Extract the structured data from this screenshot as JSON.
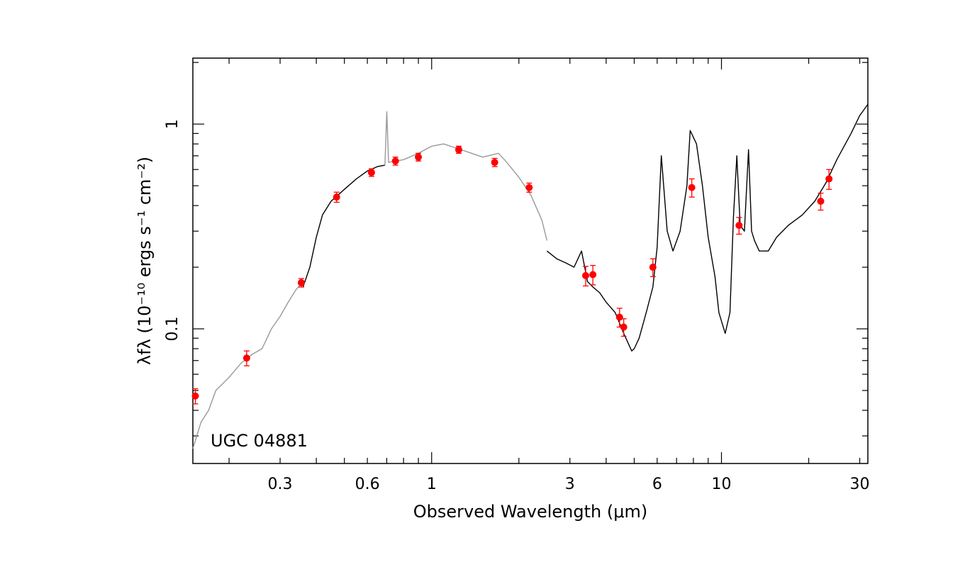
{
  "chart_data": {
    "type": "scatter",
    "title": "",
    "annotation": "UGC 04881",
    "xlabel": "Observed Wavelength (μm)",
    "ylabel": "λfλ (10⁻¹⁰ ergs s⁻¹ cm⁻²)",
    "x_scale": "log",
    "y_scale": "log",
    "xlim": [
      0.15,
      32
    ],
    "ylim": [
      0.022,
      2.1
    ],
    "x_ticks": [
      {
        "value": 0.3,
        "label": "0.3"
      },
      {
        "value": 0.6,
        "label": "0.6"
      },
      {
        "value": 1,
        "label": "1"
      },
      {
        "value": 3,
        "label": "3"
      },
      {
        "value": 6,
        "label": "6"
      },
      {
        "value": 10,
        "label": "10"
      },
      {
        "value": 30,
        "label": "30"
      }
    ],
    "y_ticks": [
      {
        "value": 0.1,
        "label": "0.1"
      },
      {
        "value": 1,
        "label": "1"
      }
    ],
    "grid": false,
    "series": [
      {
        "kind": "points",
        "color": "#ff0000",
        "x": [
          0.153,
          0.23,
          0.355,
          0.47,
          0.62,
          0.75,
          0.9,
          1.24,
          1.65,
          2.17,
          3.4,
          3.6,
          4.45,
          4.6,
          5.8,
          7.9,
          11.5,
          22,
          23.5
        ],
        "y": [
          0.047,
          0.072,
          0.168,
          0.44,
          0.58,
          0.66,
          0.69,
          0.75,
          0.65,
          0.49,
          0.182,
          0.184,
          0.114,
          0.102,
          0.2,
          0.49,
          0.32,
          0.42,
          0.54
        ],
        "yerr": [
          0.004,
          0.006,
          0.008,
          0.025,
          0.025,
          0.03,
          0.03,
          0.03,
          0.03,
          0.025,
          0.02,
          0.02,
          0.012,
          0.01,
          0.02,
          0.05,
          0.03,
          0.04,
          0.06
        ]
      },
      {
        "kind": "line",
        "color": "#999999",
        "x": [
          0.15,
          0.16,
          0.17,
          0.18,
          0.2,
          0.22,
          0.24,
          0.26,
          0.28,
          0.3,
          0.32,
          0.34,
          0.36
        ],
        "y": [
          0.026,
          0.035,
          0.04,
          0.05,
          0.058,
          0.068,
          0.075,
          0.08,
          0.1,
          0.115,
          0.135,
          0.155,
          0.17
        ]
      },
      {
        "kind": "line",
        "color": "#000000",
        "x": [
          0.36,
          0.38,
          0.4,
          0.42,
          0.45,
          0.5,
          0.55,
          0.6,
          0.65,
          0.69
        ],
        "y": [
          0.16,
          0.2,
          0.28,
          0.36,
          0.42,
          0.48,
          0.54,
          0.59,
          0.62,
          0.63
        ]
      },
      {
        "kind": "line",
        "color": "#999999",
        "x": [
          0.69,
          0.7,
          0.71,
          0.8,
          0.9,
          1.0,
          1.1,
          1.3,
          1.5,
          1.7,
          1.8,
          2.0,
          2.2,
          2.4,
          2.5
        ],
        "y": [
          0.63,
          1.15,
          0.65,
          0.67,
          0.72,
          0.78,
          0.8,
          0.74,
          0.69,
          0.72,
          0.66,
          0.55,
          0.45,
          0.34,
          0.27
        ]
      },
      {
        "kind": "line",
        "color": "#000000",
        "x": [
          2.5,
          2.7,
          2.9,
          3.1,
          3.29,
          3.45,
          3.6,
          3.8,
          4.0,
          4.3,
          4.6,
          4.9,
          5.0,
          5.2,
          5.5,
          5.8,
          6.0,
          6.2,
          6.5,
          6.8,
          7.2,
          7.6,
          7.8,
          8.2,
          8.6,
          9.0,
          9.5,
          9.8,
          10.3,
          10.7,
          11.0,
          11.3,
          11.6,
          12.0,
          12.4,
          12.7,
          13.0,
          13.5,
          14.5,
          15.5,
          17.0,
          19.0,
          21.0,
          23.0,
          25.0,
          28.0,
          30.0,
          32.0
        ],
        "y": [
          0.24,
          0.22,
          0.21,
          0.2,
          0.24,
          0.17,
          0.16,
          0.15,
          0.135,
          0.12,
          0.095,
          0.078,
          0.08,
          0.09,
          0.12,
          0.16,
          0.25,
          0.7,
          0.3,
          0.24,
          0.3,
          0.5,
          0.93,
          0.8,
          0.5,
          0.28,
          0.18,
          0.12,
          0.095,
          0.12,
          0.35,
          0.7,
          0.32,
          0.3,
          0.75,
          0.3,
          0.27,
          0.24,
          0.24,
          0.28,
          0.32,
          0.36,
          0.42,
          0.52,
          0.67,
          0.9,
          1.1,
          1.25
        ]
      }
    ]
  }
}
